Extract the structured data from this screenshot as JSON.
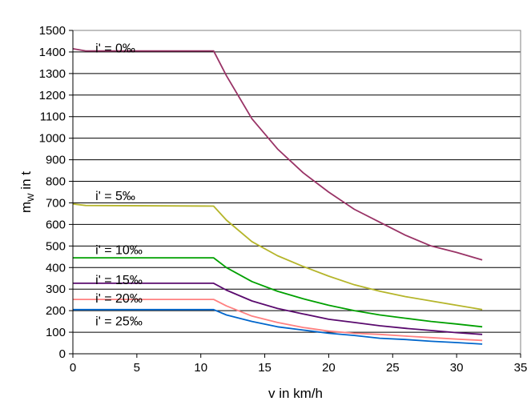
{
  "chart_data": {
    "type": "line",
    "title": "",
    "xlabel": "v in km/h",
    "ylabel_main": "m",
    "ylabel_sub": "W",
    "ylabel_rest": " in t",
    "xlim": [
      0,
      35
    ],
    "ylim": [
      0,
      1500
    ],
    "xticks": [
      0,
      5,
      10,
      15,
      20,
      25,
      30,
      35
    ],
    "yticks": [
      0,
      100,
      200,
      300,
      400,
      500,
      600,
      700,
      800,
      900,
      1000,
      1100,
      1200,
      1300,
      1400,
      1500
    ],
    "grid": "horizontal",
    "series": [
      {
        "name": "i' = 0‰",
        "color": "#993366",
        "x": [
          0,
          1,
          11,
          12,
          14,
          16,
          18,
          20,
          22,
          24,
          26,
          28,
          30,
          32
        ],
        "y": [
          1415,
          1405,
          1405,
          1290,
          1090,
          950,
          840,
          750,
          670,
          610,
          550,
          500,
          470,
          435
        ],
        "label_x": 0.7,
        "label_y": 1420
      },
      {
        "name": "i' = 5‰",
        "color": "#b5b52a",
        "x": [
          0,
          1,
          11,
          12,
          14,
          16,
          18,
          20,
          22,
          24,
          26,
          28,
          30,
          32
        ],
        "y": [
          695,
          688,
          685,
          620,
          520,
          455,
          405,
          360,
          320,
          290,
          265,
          245,
          225,
          205
        ],
        "label_x": 0.7,
        "label_y": 735
      },
      {
        "name": "i' = 10‰",
        "color": "#00a000",
        "x": [
          0,
          11,
          12,
          14,
          16,
          18,
          20,
          22,
          24,
          26,
          28,
          30,
          32
        ],
        "y": [
          445,
          445,
          400,
          335,
          290,
          255,
          225,
          200,
          180,
          165,
          150,
          138,
          125
        ],
        "label_x": 0.7,
        "label_y": 485
      },
      {
        "name": "i' = 15‰",
        "color": "#5a0a6e",
        "x": [
          0,
          11,
          12,
          14,
          16,
          18,
          20,
          22,
          24,
          26,
          28,
          30,
          32
        ],
        "y": [
          327,
          327,
          295,
          245,
          210,
          185,
          160,
          145,
          130,
          118,
          108,
          98,
          90
        ],
        "label_x": 0.7,
        "label_y": 345
      },
      {
        "name": "i' = 20‰",
        "color": "#ff8080",
        "x": [
          0,
          11,
          12,
          14,
          16,
          18,
          20,
          22,
          24,
          26,
          28,
          30,
          32
        ],
        "y": [
          252,
          252,
          222,
          175,
          145,
          122,
          105,
          95,
          90,
          82,
          75,
          68,
          62
        ],
        "label_x": 0.7,
        "label_y": 260
      },
      {
        "name": "i' = 25‰",
        "color": "#0066cc",
        "x": [
          0,
          11,
          12,
          14,
          16,
          18,
          20,
          22,
          24,
          26,
          28,
          30,
          32
        ],
        "y": [
          205,
          205,
          180,
          150,
          125,
          110,
          95,
          85,
          72,
          66,
          58,
          52,
          45
        ],
        "label_x": 0.7,
        "label_y": 155
      }
    ]
  }
}
